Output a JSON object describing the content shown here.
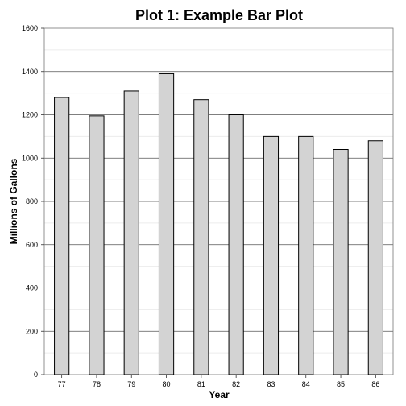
{
  "chart_data": {
    "type": "bar",
    "title": "Plot 1: Example Bar Plot",
    "xlabel": "Year",
    "ylabel": "Millions of Gallons",
    "categories": [
      "77",
      "78",
      "79",
      "80",
      "81",
      "82",
      "83",
      "84",
      "85",
      "86"
    ],
    "values": [
      1280,
      1195,
      1310,
      1390,
      1270,
      1200,
      1100,
      1100,
      1040,
      1080
    ],
    "ylim": [
      0,
      1600
    ],
    "yticks": [
      "0",
      "200",
      "400",
      "600",
      "800",
      "1000",
      "1200",
      "1400",
      "1600"
    ],
    "grid": "horizontal",
    "legend": "none",
    "colors": {
      "bar_fill": "#d3d3d3",
      "bar_stroke": "#000000",
      "major_grid": "#555555",
      "minor_grid": "#ececec",
      "frame": "#777777"
    }
  }
}
